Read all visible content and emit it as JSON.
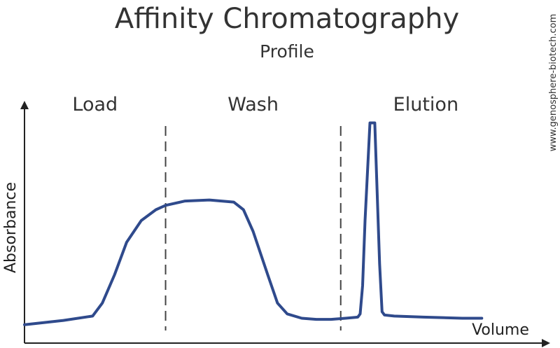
{
  "chart_data": {
    "type": "line",
    "title": "Affinity Chromatography",
    "subtitle": "Profile",
    "xlabel": "Volume",
    "ylabel": "Absorbance",
    "phases": [
      {
        "label": "Load",
        "x_start": 0,
        "x_end": 0.29
      },
      {
        "label": "Wash",
        "x_start": 0.29,
        "x_end": 0.65
      },
      {
        "label": "Elution",
        "x_start": 0.65,
        "x_end": 1.0
      }
    ],
    "boundaries": [
      0.29,
      0.65
    ],
    "series": [
      {
        "color": "#2f4a8c",
        "x": [
          0,
          0.08,
          0.14,
          0.16,
          0.185,
          0.21,
          0.24,
          0.27,
          0.29,
          0.33,
          0.38,
          0.43,
          0.45,
          0.47,
          0.5,
          0.52,
          0.54,
          0.57,
          0.6,
          0.63,
          0.66,
          0.685,
          0.69,
          0.695,
          0.7,
          0.71,
          0.72,
          0.73,
          0.735,
          0.74,
          0.76,
          0.82,
          0.9,
          0.94
        ],
        "y": [
          0.02,
          0.04,
          0.06,
          0.12,
          0.25,
          0.4,
          0.5,
          0.55,
          0.57,
          0.59,
          0.595,
          0.585,
          0.55,
          0.45,
          0.25,
          0.12,
          0.07,
          0.05,
          0.045,
          0.045,
          0.05,
          0.055,
          0.07,
          0.2,
          0.5,
          0.95,
          0.95,
          0.3,
          0.08,
          0.065,
          0.06,
          0.055,
          0.05,
          0.05
        ]
      }
    ],
    "ylim": [
      0,
      1
    ],
    "xlim": [
      0,
      1
    ],
    "grid": false
  },
  "watermark": "www.genosphere-biotech.com"
}
